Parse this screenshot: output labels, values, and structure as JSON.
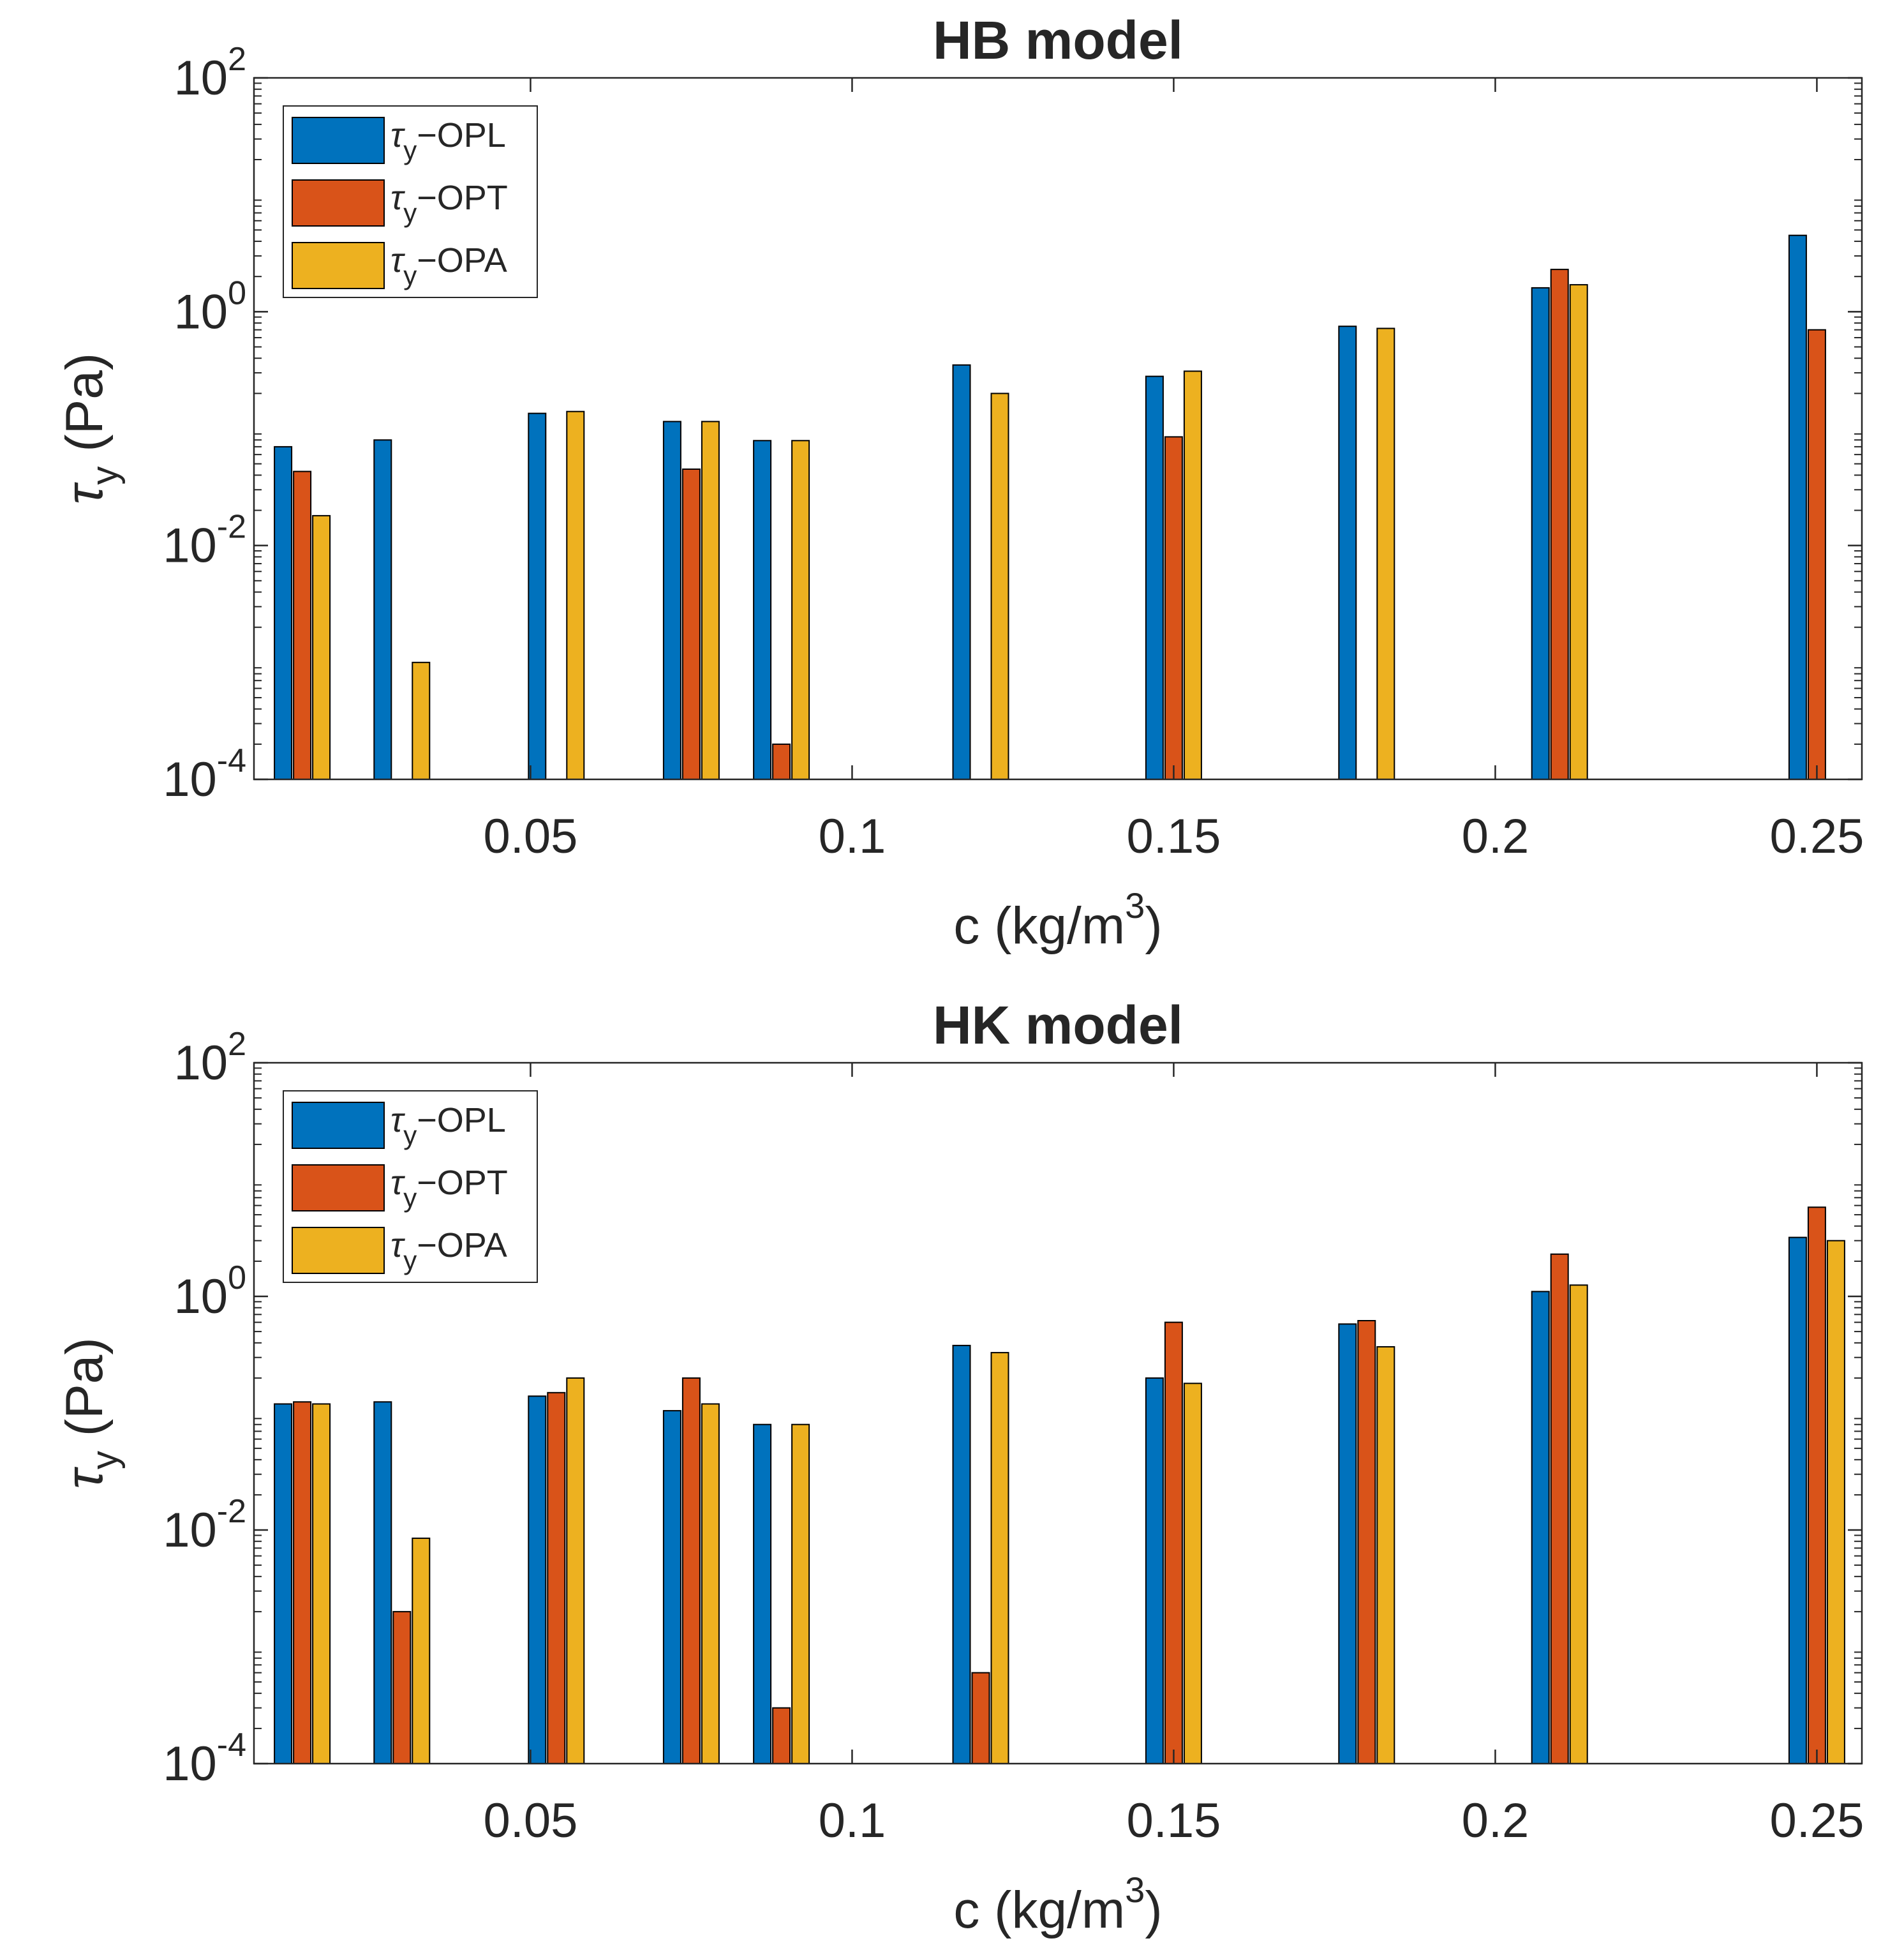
{
  "chart_data": [
    {
      "type": "bar",
      "title": "HB model",
      "xlabel_main": "c (kg/m",
      "xlabel_sup": "3",
      "xlabel_end": ")",
      "ylabel_main": "τ",
      "ylabel_sub": "y",
      "ylabel_end": " (Pa)",
      "yscale": "log",
      "ylim": [
        0.0001,
        100
      ],
      "xlim": [
        0.007,
        0.257
      ],
      "xticks": [
        0.05,
        0.1,
        0.15,
        0.2,
        0.25
      ],
      "xticklabels": [
        "0.05",
        "0.1",
        "0.15",
        "0.2",
        "0.25"
      ],
      "yticks": [
        {
          "base": "10",
          "exp": "-4",
          "value": 0.0001
        },
        {
          "base": "10",
          "exp": "-2",
          "value": 0.01
        },
        {
          "base": "10",
          "exp": "0",
          "value": 1
        },
        {
          "base": "10",
          "exp": "2",
          "value": 100
        }
      ],
      "x": [
        0.0145,
        0.03,
        0.054,
        0.075,
        0.089,
        0.12,
        0.15,
        0.18,
        0.21,
        0.25
      ],
      "series": [
        {
          "name": "OPL",
          "color": "#0072BD",
          "values": [
            0.07,
            0.08,
            0.135,
            0.115,
            0.079,
            0.35,
            0.28,
            0.75,
            1.6,
            4.5
          ]
        },
        {
          "name": "OPT",
          "color": "#D95319",
          "values": [
            0.043,
            null,
            null,
            0.045,
            0.0002,
            null,
            0.085,
            null,
            2.3,
            0.7
          ]
        },
        {
          "name": "OPA",
          "color": "#EDB120",
          "values": [
            0.018,
            0.001,
            0.14,
            0.115,
            0.079,
            0.2,
            0.31,
            0.72,
            1.7,
            null
          ]
        }
      ],
      "legend": {
        "position": "top-left",
        "entries": [
          {
            "prefix": "τ",
            "sub": "y",
            "suffix": "−OPL"
          },
          {
            "prefix": "τ",
            "sub": "y",
            "suffix": "−OPT"
          },
          {
            "prefix": "τ",
            "sub": "y",
            "suffix": "−OPA"
          }
        ]
      }
    },
    {
      "type": "bar",
      "title": "HK model",
      "xlabel_main": "c (kg/m",
      "xlabel_sup": "3",
      "xlabel_end": ")",
      "ylabel_main": "τ",
      "ylabel_sub": "y",
      "ylabel_end": " (Pa)",
      "yscale": "log",
      "ylim": [
        0.0001,
        100
      ],
      "xlim": [
        0.007,
        0.257
      ],
      "xticks": [
        0.05,
        0.1,
        0.15,
        0.2,
        0.25
      ],
      "xticklabels": [
        "0.05",
        "0.1",
        "0.15",
        "0.2",
        "0.25"
      ],
      "yticks": [
        {
          "base": "10",
          "exp": "-4",
          "value": 0.0001
        },
        {
          "base": "10",
          "exp": "-2",
          "value": 0.01
        },
        {
          "base": "10",
          "exp": "0",
          "value": 1
        },
        {
          "base": "10",
          "exp": "2",
          "value": 100
        }
      ],
      "x": [
        0.0145,
        0.03,
        0.054,
        0.075,
        0.089,
        0.12,
        0.15,
        0.18,
        0.21,
        0.25
      ],
      "series": [
        {
          "name": "OPL",
          "color": "#0072BD",
          "values": [
            0.12,
            0.125,
            0.14,
            0.105,
            0.08,
            0.38,
            0.2,
            0.58,
            1.1,
            3.2
          ]
        },
        {
          "name": "OPT",
          "color": "#D95319",
          "values": [
            0.125,
            0.002,
            0.15,
            0.2,
            0.0003,
            0.0006,
            0.6,
            0.62,
            2.3,
            5.8
          ]
        },
        {
          "name": "OPA",
          "color": "#EDB120",
          "values": [
            0.12,
            0.0085,
            0.2,
            0.12,
            0.08,
            0.33,
            0.18,
            0.37,
            1.25,
            3.0
          ]
        }
      ],
      "legend": {
        "position": "top-left",
        "entries": [
          {
            "prefix": "τ",
            "sub": "y",
            "suffix": "−OPL"
          },
          {
            "prefix": "τ",
            "sub": "y",
            "suffix": "−OPT"
          },
          {
            "prefix": "τ",
            "sub": "y",
            "suffix": "−OPA"
          }
        ]
      }
    }
  ]
}
